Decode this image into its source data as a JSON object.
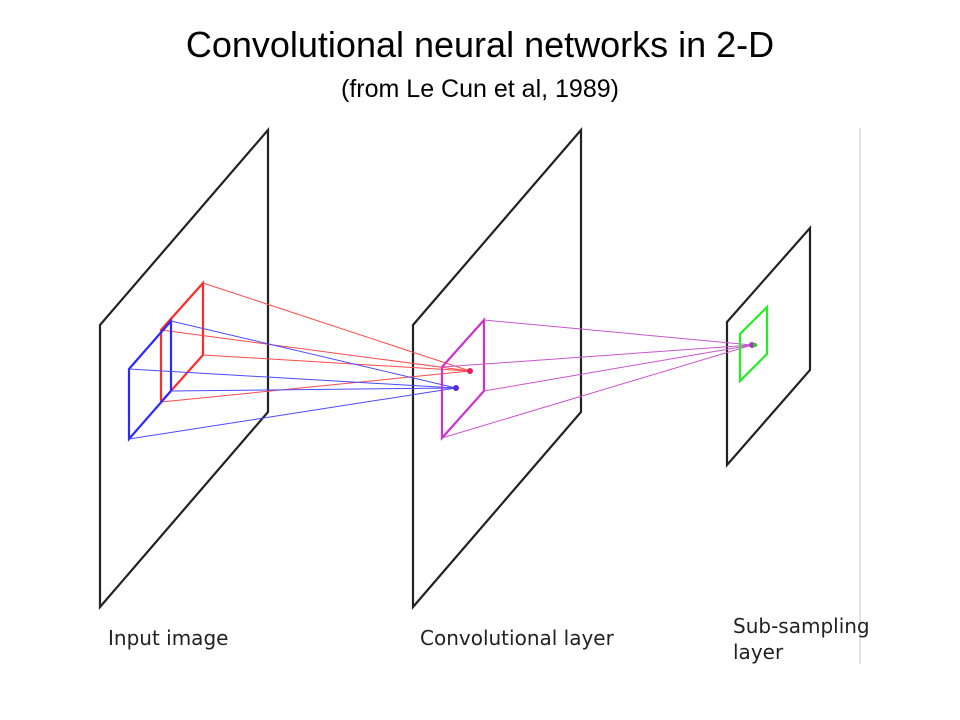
{
  "title": "Convolutional neural networks in 2-D",
  "subtitle": "(from Le Cun et al, 1989)",
  "layers": {
    "input": "Input image",
    "conv": "Convolutional layer",
    "sub_line1": "Sub-sampling",
    "sub_line2": "layer"
  },
  "colors": {
    "plane": "#222222",
    "receptive_field_red": "#ff2a2a",
    "receptive_field_blue": "#2a2aff",
    "receptive_field_magenta": "#cc33cc",
    "pooling_field_green": "#22ee22"
  }
}
